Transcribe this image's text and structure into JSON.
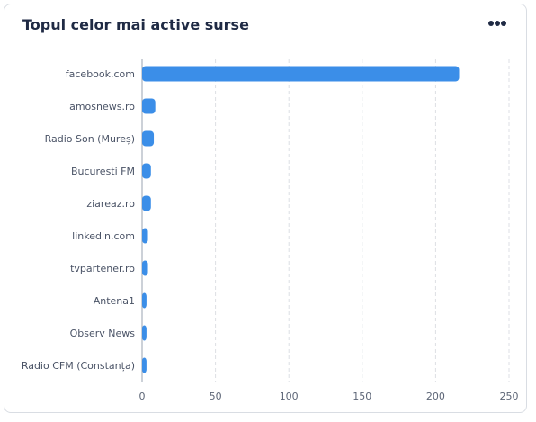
{
  "card": {
    "title": "Topul celor mai active surse"
  },
  "chart_data": {
    "type": "bar",
    "orientation": "horizontal",
    "title": "Topul celor mai active surse",
    "xlabel": "",
    "ylabel": "",
    "categories": [
      "facebook.com",
      "amosnews.ro",
      "Radio Son (Mureș)",
      "Bucuresti FM",
      "ziareaz.ro",
      "linkedin.com",
      "tvpartener.ro",
      "Antena1",
      "Observ News",
      "Radio CFM (Constanța)"
    ],
    "values": [
      216,
      9,
      8,
      6,
      6,
      4,
      4,
      3,
      3,
      3
    ],
    "xlim": [
      0,
      250
    ],
    "xticks": [
      0,
      50,
      100,
      150,
      200,
      250
    ],
    "grid": "vertical-dashed",
    "bar_color": "#3b8ee8"
  }
}
